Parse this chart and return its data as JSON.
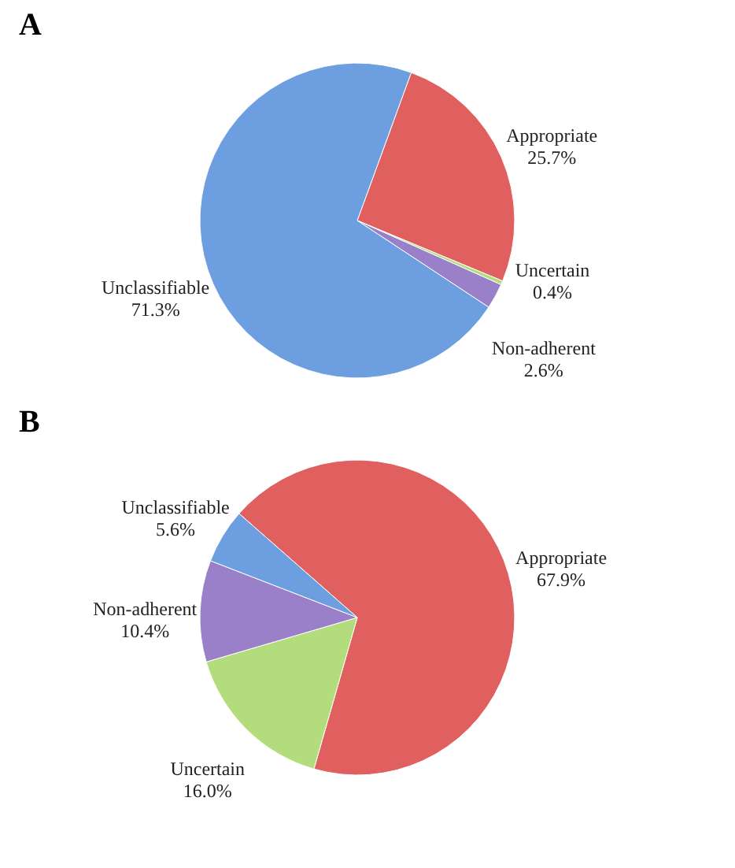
{
  "chart_data": [
    {
      "type": "pie",
      "title": "A",
      "categories": [
        "Appropriate",
        "Uncertain",
        "Non-adherent",
        "Unclassifiable"
      ],
      "values": [
        25.7,
        0.4,
        2.6,
        71.3
      ],
      "colors": [
        "#e0605f",
        "#b3dd7c",
        "#9a80c8",
        "#6d9fe0"
      ],
      "value_labels": [
        "25.7%",
        "0.4%",
        "2.6%",
        "71.3%"
      ]
    },
    {
      "type": "pie",
      "title": "B",
      "categories": [
        "Appropriate",
        "Uncertain",
        "Non-adherent",
        "Unclassifiable"
      ],
      "values": [
        67.9,
        16.0,
        10.4,
        5.6
      ],
      "colors": [
        "#e0605f",
        "#b3dd7c",
        "#9a80c8",
        "#6d9fe0"
      ],
      "value_labels": [
        "67.9%",
        "16.0%",
        "10.4%",
        "5.6%"
      ]
    }
  ]
}
